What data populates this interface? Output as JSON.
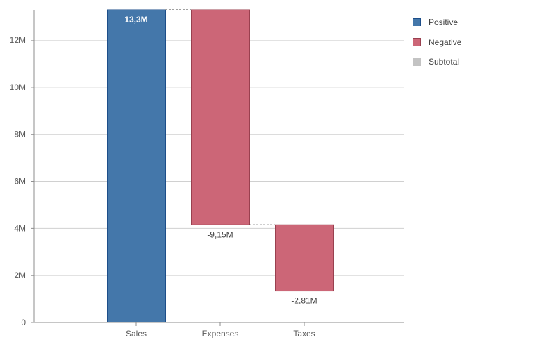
{
  "chart_data": {
    "type": "waterfall",
    "categories": [
      "Sales",
      "Expenses",
      "Taxes"
    ],
    "steps": [
      {
        "category": "Sales",
        "kind": "Positive",
        "start": 0,
        "end": 13.3,
        "label": "13,3M"
      },
      {
        "category": "Expenses",
        "kind": "Negative",
        "start": 13.3,
        "end": 4.15,
        "label": "-9,15M"
      },
      {
        "category": "Taxes",
        "kind": "Negative",
        "start": 4.15,
        "end": 1.34,
        "label": "-2,81M"
      }
    ],
    "y_ticks": [
      {
        "value": 0,
        "label": "0"
      },
      {
        "value": 2,
        "label": "2M"
      },
      {
        "value": 4,
        "label": "4M"
      },
      {
        "value": 6,
        "label": "6M"
      },
      {
        "value": 8,
        "label": "8M"
      },
      {
        "value": 10,
        "label": "10M"
      },
      {
        "value": 12,
        "label": "12M"
      }
    ],
    "ylim": [
      0,
      13.3
    ],
    "grid": true,
    "legend_position": "right",
    "legend": [
      {
        "label": "Positive",
        "color": "#4477aa",
        "border": "#1d4e89"
      },
      {
        "label": "Negative",
        "color": "#cc6677",
        "border": "#99404f"
      },
      {
        "label": "Subtotal",
        "color": "#c3c3c3",
        "border": "#c3c3c3"
      }
    ],
    "connector_color": "#404040"
  }
}
